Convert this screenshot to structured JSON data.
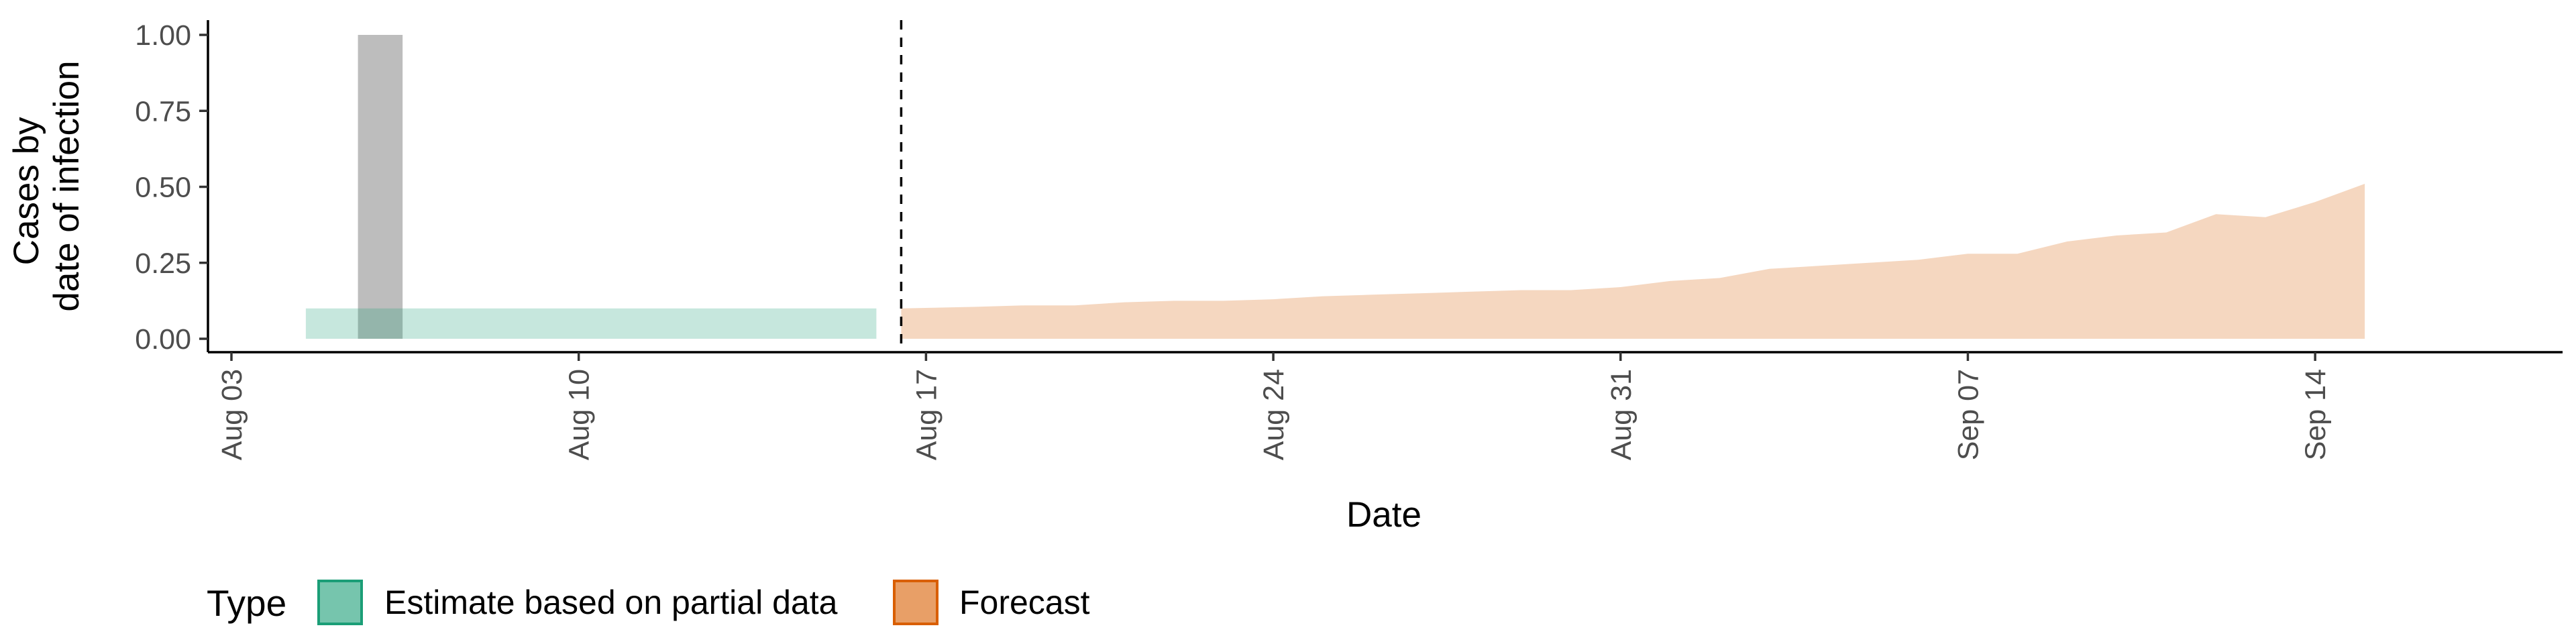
{
  "chart_data": {
    "type": "area",
    "xlabel": "Date",
    "ylabel": [
      "Cases by",
      "date of infection"
    ],
    "ylim": [
      0,
      1
    ],
    "xlim": [
      "2020-08-03",
      "2020-09-17"
    ],
    "x_ticks": [
      {
        "date": "2020-08-03",
        "label": "Aug 03"
      },
      {
        "date": "2020-08-10",
        "label": "Aug 10"
      },
      {
        "date": "2020-08-17",
        "label": "Aug 17"
      },
      {
        "date": "2020-08-24",
        "label": "Aug 24"
      },
      {
        "date": "2020-08-31",
        "label": "Aug 31"
      },
      {
        "date": "2020-09-07",
        "label": "Sep 07"
      },
      {
        "date": "2020-09-14",
        "label": "Sep 14"
      }
    ],
    "y_ticks": [
      {
        "value": 0,
        "label": "0.00"
      },
      {
        "value": 0.25,
        "label": "0.25"
      },
      {
        "value": 0.5,
        "label": "0.50"
      },
      {
        "value": 0.75,
        "label": "0.75"
      },
      {
        "value": 1,
        "label": "1.00"
      }
    ],
    "grid": false,
    "legend_title": "Type",
    "legend_position": "bottom-left",
    "bars": [
      {
        "date": "2020-08-06",
        "value": 1.0,
        "color": "#bdbdbd"
      }
    ],
    "vline": {
      "date": "2020-08-16",
      "style": "dashed"
    },
    "series": [
      {
        "name": "Estimate based on partial data",
        "color": "#1b9e77",
        "points": [
          {
            "date": "2020-08-05",
            "lower": 0.0,
            "upper": 0.1
          },
          {
            "date": "2020-08-06",
            "lower": 0.0,
            "upper": 0.1
          },
          {
            "date": "2020-08-07",
            "lower": 0.0,
            "upper": 0.1
          },
          {
            "date": "2020-08-08",
            "lower": 0.0,
            "upper": 0.1
          },
          {
            "date": "2020-08-09",
            "lower": 0.0,
            "upper": 0.1
          },
          {
            "date": "2020-08-10",
            "lower": 0.0,
            "upper": 0.1
          },
          {
            "date": "2020-08-11",
            "lower": 0.0,
            "upper": 0.1
          },
          {
            "date": "2020-08-12",
            "lower": 0.0,
            "upper": 0.1
          },
          {
            "date": "2020-08-13",
            "lower": 0.0,
            "upper": 0.1
          },
          {
            "date": "2020-08-14",
            "lower": 0.0,
            "upper": 0.1
          },
          {
            "date": "2020-08-15",
            "lower": 0.0,
            "upper": 0.1
          },
          {
            "date": "2020-08-16",
            "lower": 0.0,
            "upper": 0.1
          }
        ]
      },
      {
        "name": "Forecast",
        "color": "#d95f02",
        "points": [
          {
            "date": "2020-08-17",
            "lower": 0.0,
            "upper": 0.1
          },
          {
            "date": "2020-08-18",
            "lower": 0.0,
            "upper": 0.105
          },
          {
            "date": "2020-08-19",
            "lower": 0.0,
            "upper": 0.11
          },
          {
            "date": "2020-08-20",
            "lower": 0.0,
            "upper": 0.11
          },
          {
            "date": "2020-08-21",
            "lower": 0.0,
            "upper": 0.12
          },
          {
            "date": "2020-08-22",
            "lower": 0.0,
            "upper": 0.125
          },
          {
            "date": "2020-08-23",
            "lower": 0.0,
            "upper": 0.125
          },
          {
            "date": "2020-08-24",
            "lower": 0.0,
            "upper": 0.13
          },
          {
            "date": "2020-08-25",
            "lower": 0.0,
            "upper": 0.14
          },
          {
            "date": "2020-08-26",
            "lower": 0.0,
            "upper": 0.145
          },
          {
            "date": "2020-08-27",
            "lower": 0.0,
            "upper": 0.15
          },
          {
            "date": "2020-08-28",
            "lower": 0.0,
            "upper": 0.155
          },
          {
            "date": "2020-08-29",
            "lower": 0.0,
            "upper": 0.16
          },
          {
            "date": "2020-08-30",
            "lower": 0.0,
            "upper": 0.16
          },
          {
            "date": "2020-08-31",
            "lower": 0.0,
            "upper": 0.17
          },
          {
            "date": "2020-09-01",
            "lower": 0.0,
            "upper": 0.19
          },
          {
            "date": "2020-09-02",
            "lower": 0.0,
            "upper": 0.2
          },
          {
            "date": "2020-09-03",
            "lower": 0.0,
            "upper": 0.23
          },
          {
            "date": "2020-09-04",
            "lower": 0.0,
            "upper": 0.24
          },
          {
            "date": "2020-09-05",
            "lower": 0.0,
            "upper": 0.25
          },
          {
            "date": "2020-09-06",
            "lower": 0.0,
            "upper": 0.26
          },
          {
            "date": "2020-09-07",
            "lower": 0.0,
            "upper": 0.28
          },
          {
            "date": "2020-09-08",
            "lower": 0.0,
            "upper": 0.28
          },
          {
            "date": "2020-09-09",
            "lower": 0.0,
            "upper": 0.32
          },
          {
            "date": "2020-09-10",
            "lower": 0.0,
            "upper": 0.34
          },
          {
            "date": "2020-09-11",
            "lower": 0.0,
            "upper": 0.35
          },
          {
            "date": "2020-09-12",
            "lower": 0.0,
            "upper": 0.41
          },
          {
            "date": "2020-09-13",
            "lower": 0.0,
            "upper": 0.4
          },
          {
            "date": "2020-09-14",
            "lower": 0.0,
            "upper": 0.45
          },
          {
            "date": "2020-09-15",
            "lower": 0.0,
            "upper": 0.51
          }
        ]
      }
    ]
  }
}
